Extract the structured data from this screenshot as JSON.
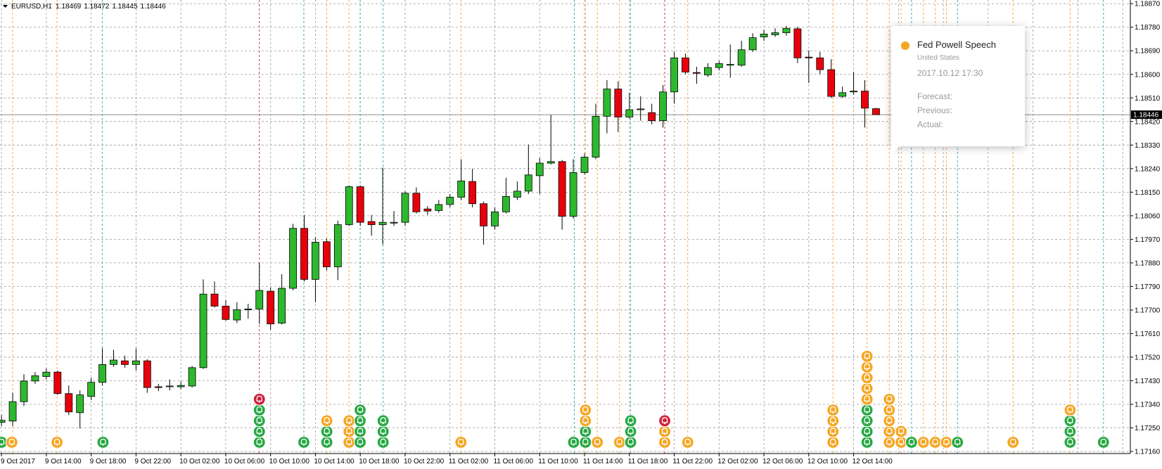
{
  "chart_data": {
    "type": "candlestick",
    "symbol": "EURUSD,H1",
    "categories": [
      "9 Oct 2017",
      null,
      null,
      null,
      "9 Oct 14:00",
      null,
      null,
      null,
      "9 Oct 18:00",
      null,
      null,
      null,
      "9 Oct 22:00",
      null,
      null,
      null,
      "10 Oct 02:00",
      null,
      null,
      null,
      "10 Oct 06:00",
      null,
      null,
      null,
      "10 Oct 10:00",
      null,
      null,
      null,
      "10 Oct 14:00",
      null,
      null,
      null,
      "10 Oct 18:00",
      null,
      null,
      null,
      "10 Oct 22:00",
      null,
      null,
      null,
      "11 Oct 02:00",
      null,
      null,
      null,
      "11 Oct 06:00",
      null,
      null,
      null,
      "11 Oct 10:00",
      null,
      null,
      null,
      "11 Oct 14:00",
      null,
      null,
      null,
      "11 Oct 18:00",
      null,
      null,
      null,
      "11 Oct 22:00",
      null,
      null,
      null,
      "12 Oct 02:00",
      null,
      null,
      null,
      "12 Oct 06:00",
      null,
      null,
      null,
      "12 Oct 10:00",
      null,
      null,
      null,
      "12 Oct 14:00",
      null,
      null
    ],
    "open": [
      1.17271,
      1.17276,
      1.1735,
      1.17429,
      1.17446,
      1.17463,
      1.17381,
      1.17308,
      1.1737,
      1.17424,
      1.17492,
      1.17506,
      1.17492,
      1.17506,
      1.17407,
      1.17407,
      1.17407,
      1.1741,
      1.1748,
      1.17761,
      1.17715,
      1.17662,
      1.17701,
      1.17704,
      1.17772,
      1.1765,
      1.17783,
      1.18012,
      1.17817,
      1.17961,
      1.17865,
      1.18026,
      1.18171,
      1.18038,
      1.18026,
      1.18032,
      1.18035,
      1.18146,
      1.18086,
      1.1808,
      1.18103,
      1.18131,
      1.18191,
      1.18106,
      1.18021,
      1.18075,
      1.18131,
      1.18154,
      1.18213,
      1.18261,
      1.18267,
      1.18058,
      1.18225,
      1.18284,
      1.1844,
      1.18544,
      1.18437,
      1.18465,
      1.18454,
      1.18423,
      1.18533,
      1.18663,
      1.18607,
      1.18598,
      1.18626,
      1.18635,
      1.18635,
      1.18694,
      1.18743,
      1.18751,
      1.18759,
      1.18774,
      1.18666,
      1.18663,
      1.18618,
      1.18516,
      1.18533,
      1.18536,
      1.18469
    ],
    "high": [
      1.17299,
      1.17384,
      1.17455,
      1.17463,
      1.17477,
      1.17469,
      1.17412,
      1.17393,
      1.17441,
      1.17554,
      1.17548,
      1.17526,
      1.17554,
      1.17512,
      1.17418,
      1.17435,
      1.17427,
      1.17486,
      1.17817,
      1.17809,
      1.17738,
      1.1773,
      1.17724,
      1.1788,
      1.17786,
      1.17837,
      1.18029,
      1.18063,
      1.17978,
      1.17973,
      1.18041,
      1.18176,
      1.18176,
      1.18063,
      1.18244,
      1.18078,
      1.18154,
      1.18168,
      1.18097,
      1.1812,
      1.18143,
      1.18276,
      1.18239,
      1.18114,
      1.18092,
      1.18205,
      1.18191,
      1.18332,
      1.18281,
      1.18445,
      1.18273,
      1.18276,
      1.18298,
      1.18488,
      1.18578,
      1.18573,
      1.1853,
      1.18516,
      1.18488,
      1.18559,
      1.18686,
      1.1868,
      1.18629,
      1.18643,
      1.18652,
      1.18714,
      1.18728,
      1.18757,
      1.18771,
      1.18776,
      1.18785,
      1.18782,
      1.18692,
      1.18686,
      1.18658,
      1.18553,
      1.18609,
      1.18578,
      1.18472
    ],
    "low": [
      1.17257,
      1.17257,
      1.17333,
      1.17418,
      1.17435,
      1.17376,
      1.17299,
      1.17248,
      1.17356,
      1.17412,
      1.17483,
      1.1748,
      1.17469,
      1.17384,
      1.1739,
      1.17393,
      1.17398,
      1.17404,
      1.17475,
      1.1771,
      1.17659,
      1.1765,
      1.17667,
      1.17647,
      1.17625,
      1.17645,
      1.17775,
      1.17809,
      1.1773,
      1.17851,
      1.17814,
      1.18021,
      1.18021,
      1.17984,
      1.1795,
      1.18021,
      1.18021,
      1.18069,
      1.18063,
      1.18072,
      1.18092,
      1.1812,
      1.18092,
      1.1795,
      1.18007,
      1.18069,
      1.1812,
      1.18143,
      1.18143,
      1.18256,
      1.18007,
      1.18049,
      1.18219,
      1.18276,
      1.18375,
      1.1838,
      1.18431,
      1.18423,
      1.18409,
      1.18397,
      1.18488,
      1.18601,
      1.18564,
      1.1859,
      1.18615,
      1.18587,
      1.18629,
      1.18686,
      1.18728,
      1.18743,
      1.18748,
      1.18643,
      1.18567,
      1.18601,
      1.1851,
      1.1851,
      1.18522,
      1.18397,
      1.18445
    ],
    "close": [
      1.17279,
      1.1735,
      1.17429,
      1.17449,
      1.17463,
      1.17381,
      1.17311,
      1.17376,
      1.17424,
      1.17492,
      1.17509,
      1.17492,
      1.17506,
      1.17404,
      1.17404,
      1.1741,
      1.17412,
      1.1748,
      1.17761,
      1.17715,
      1.17664,
      1.17701,
      1.17704,
      1.17775,
      1.17647,
      1.17783,
      1.18012,
      1.17817,
      1.17959,
      1.17865,
      1.18026,
      1.18171,
      1.18035,
      1.18026,
      1.18035,
      1.18035,
      1.18146,
      1.18075,
      1.18078,
      1.18103,
      1.18131,
      1.18193,
      1.18106,
      1.18021,
      1.18075,
      1.18134,
      1.18154,
      1.18216,
      1.18261,
      1.18267,
      1.18058,
      1.18225,
      1.18284,
      1.1844,
      1.18544,
      1.18437,
      1.18465,
      1.18468,
      1.18423,
      1.18533,
      1.18663,
      1.18609,
      1.18604,
      1.18626,
      1.18641,
      1.18638,
      1.18694,
      1.1874,
      1.18754,
      1.18759,
      1.18776,
      1.18663,
      1.18663,
      1.18618,
      1.18516,
      1.1853,
      1.18536,
      1.18471,
      1.18446
    ],
    "up_color": "#2eb82e",
    "down_color": "#e8000b",
    "grid": true,
    "ylim": [
      1.17152,
      1.18884
    ],
    "yticks": [
      {
        "value": 1.1887,
        "label": "1.18870"
      },
      {
        "value": 1.1878,
        "label": "1.18780"
      },
      {
        "value": 1.1869,
        "label": "1.18690"
      },
      {
        "value": 1.186,
        "label": "1.18600"
      },
      {
        "value": 1.1851,
        "label": "1.18510"
      },
      {
        "value": 1.1842,
        "label": "1.18420"
      },
      {
        "value": 1.1833,
        "label": "1.18330"
      },
      {
        "value": 1.1824,
        "label": "1.18240"
      },
      {
        "value": 1.1815,
        "label": "1.18150"
      },
      {
        "value": 1.1806,
        "label": "1.18060"
      },
      {
        "value": 1.1797,
        "label": "1.17970"
      },
      {
        "value": 1.1788,
        "label": "1.17880"
      },
      {
        "value": 1.1779,
        "label": "1.17790"
      },
      {
        "value": 1.177,
        "label": "1.17700"
      },
      {
        "value": 1.1761,
        "label": "1.17610"
      },
      {
        "value": 1.1752,
        "label": "1.17520"
      },
      {
        "value": 1.1743,
        "label": "1.17430"
      },
      {
        "value": 1.1734,
        "label": "1.17340"
      },
      {
        "value": 1.1725,
        "label": "1.17250"
      },
      {
        "value": 1.1716,
        "label": "1.17160"
      }
    ]
  },
  "tooltip": {
    "title": "Fed Powell Speech",
    "country": "United States",
    "time": "2017.10.12 17:30",
    "fields": [
      "Forecast:",
      "Previous:",
      "Actual:"
    ]
  }
}
